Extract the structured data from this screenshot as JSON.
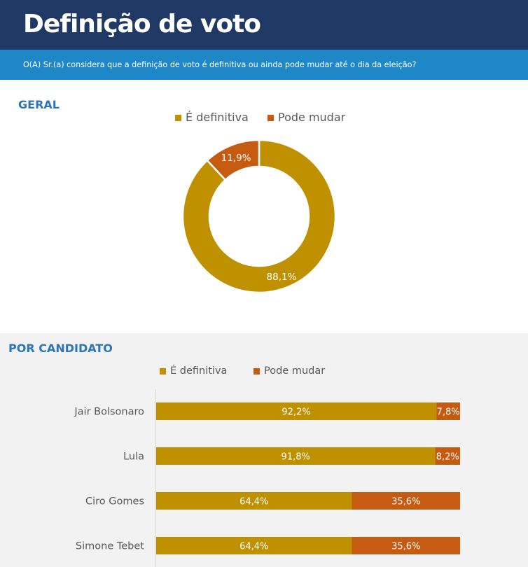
{
  "header": {
    "title": "Definição de voto"
  },
  "question": {
    "text": "O(A) Sr.(a) considera que a definição de voto é definitiva ou ainda pode mudar até o dia da eleição?"
  },
  "colors": {
    "definitiva": "#bf9000",
    "pode_mudar": "#c55a11",
    "header_bg": "#1f3864",
    "band_bg": "#1e87c8",
    "section_title": "#2e75b6"
  },
  "geral": {
    "title": "GERAL",
    "legend": [
      {
        "label": "É definitiva",
        "color": "#bf9000"
      },
      {
        "label": "Pode mudar",
        "color": "#c55a11"
      }
    ]
  },
  "por_candidato": {
    "title": "POR CANDIDATO",
    "legend": [
      {
        "label": "É definitiva",
        "color": "#bf9000"
      },
      {
        "label": "Pode mudar",
        "color": "#c55a11"
      }
    ]
  },
  "chart_data": [
    {
      "type": "pie",
      "title": "GERAL",
      "donut": true,
      "categories": [
        "É definitiva",
        "Pode mudar"
      ],
      "values": [
        88.1,
        11.9
      ],
      "labels": [
        "88,1%",
        "11,9%"
      ],
      "colors": [
        "#bf9000",
        "#c55a11"
      ],
      "legend_position": "top"
    },
    {
      "type": "bar",
      "orientation": "horizontal",
      "stacked": true,
      "title": "POR CANDIDATO",
      "categories": [
        "Jair Bolsonaro",
        "Lula",
        "Ciro Gomes",
        "Simone Tebet"
      ],
      "series": [
        {
          "name": "É definitiva",
          "color": "#bf9000",
          "values": [
            92.2,
            91.8,
            64.4,
            64.4
          ],
          "labels": [
            "92,2%",
            "91,8%",
            "64,4%",
            "64,4%"
          ]
        },
        {
          "name": "Pode mudar",
          "color": "#c55a11",
          "values": [
            7.8,
            8.2,
            35.6,
            35.6
          ],
          "labels": [
            "7,8%",
            "8,2%",
            "35,6%",
            "35,6%"
          ]
        }
      ],
      "xlim": [
        0,
        100
      ],
      "grid": false,
      "legend_position": "top"
    }
  ]
}
